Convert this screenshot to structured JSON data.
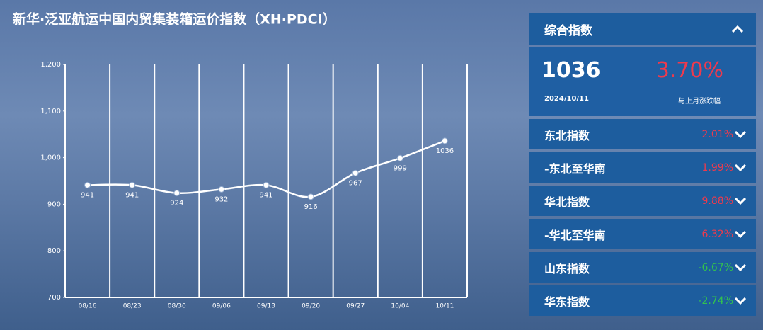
{
  "chart_data": {
    "type": "line",
    "title": "新华·泛亚航运中国内贸集装箱运价指数（XH·PDCI）",
    "categories": [
      "08/16",
      "08/23",
      "08/30",
      "09/06",
      "09/13",
      "09/20",
      "09/27",
      "10/04",
      "10/11"
    ],
    "values": [
      941,
      941,
      924,
      932,
      941,
      916,
      967,
      999,
      1036
    ],
    "color": "#ffffff",
    "ylim": [
      700,
      1200
    ],
    "yticks": [
      700,
      800,
      900,
      {
        "value": 1000,
        "label": "1,000"
      },
      {
        "value": 1100,
        "label": "1,100"
      },
      {
        "value": 1200,
        "label": "1,200"
      }
    ],
    "grid": true
  },
  "panel": {
    "header": "综合指数",
    "value": "1036",
    "change": "3.70%",
    "date": "2024/10/11",
    "change_label": "与上月涨跌幅",
    "rows": [
      {
        "name": "东北指数",
        "change": "2.01%",
        "trend": "up"
      },
      {
        "name": "-东北至华南",
        "change": "1.99%",
        "trend": "up"
      },
      {
        "name": "华北指数",
        "change": "9.88%",
        "trend": "up"
      },
      {
        "name": "-华北至华南",
        "change": "6.32%",
        "trend": "up"
      },
      {
        "name": "山东指数",
        "change": "-6.67%",
        "trend": "down"
      },
      {
        "name": "华东指数",
        "change": "-2.74%",
        "trend": "down"
      }
    ]
  }
}
